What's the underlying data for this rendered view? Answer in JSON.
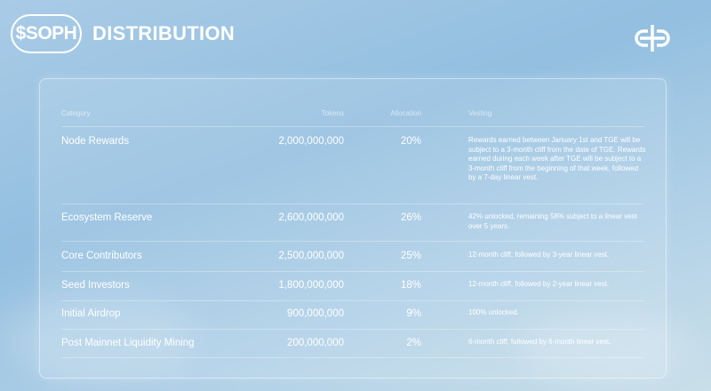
{
  "header": {
    "ticker": "$SOPH",
    "title": "DISTRIBUTION",
    "logo": "sophon-logo-icon"
  },
  "table": {
    "columns": [
      "Category",
      "Tokens",
      "Allocation",
      "Vesting"
    ],
    "rows": [
      {
        "category": "Node Rewards",
        "tokens": "2,000,000,000",
        "allocation": "20%",
        "vesting": "Rewards earned between January 1st and TGE will be subject to a 3-month cliff from the date of TGE. Rewards earned during each week after TGE will be subject to a 3-month cliff from the beginning of that week, followed by a 7-day linear vest."
      },
      {
        "category": "Ecosystem Reserve",
        "tokens": "2,600,000,000",
        "allocation": "26%",
        "vesting": "42% unlocked, remaining 58% subject to a linear vest over 5 years."
      },
      {
        "category": "Core Contributors",
        "tokens": "2,500,000,000",
        "allocation": "25%",
        "vesting": "12-month cliff, followed by 3-year linear vest."
      },
      {
        "category": "Seed Investors",
        "tokens": "1,800,000,000",
        "allocation": "18%",
        "vesting": "12-month cliff, followed by 2-year linear vest."
      },
      {
        "category": "Initial Airdrop",
        "tokens": "900,000,000",
        "allocation": "9%",
        "vesting": "100% unlocked."
      },
      {
        "category": "Post Mainnet Liquidity Mining",
        "tokens": "200,000,000",
        "allocation": "2%",
        "vesting": "6-month cliff, followed by 6-month linear vest."
      }
    ]
  }
}
